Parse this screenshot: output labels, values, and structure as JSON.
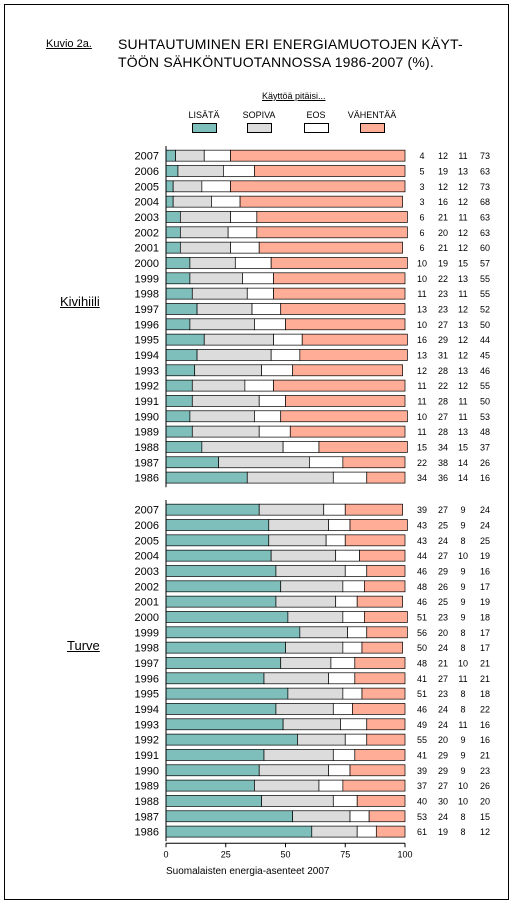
{
  "figure_label": "Kuvio 2a.",
  "title_line1": "SUHTAUTUMINEN ERI ENERGIAMUOTOJEN KÄYT-",
  "title_line2": "TÖÖN SÄHKÖNTUOTANNOSSA 1986-2007 (%).",
  "legend_title": "Käyttöä pitäisi...",
  "x_caption": "Suomalaisten energia-asenteet 2007",
  "colors": {
    "lisata": "#7ebfbc",
    "sopiva": "#dcdcdc",
    "eos": "#ffffff",
    "vahentaa": "#ffad97"
  },
  "chart_data": {
    "type": "bar",
    "orientation": "horizontal",
    "stacked": true,
    "xlim": [
      0,
      100
    ],
    "x_ticks": [
      0,
      25,
      50,
      75,
      100
    ],
    "legend": [
      "LISÄTÄ",
      "SOPIVA",
      "EOS",
      "VÄHENTÄÄ"
    ],
    "legend_placement": "top",
    "groups": [
      {
        "name": "Kivihiili",
        "categories": [
          "2007",
          "2006",
          "2005",
          "2004",
          "2003",
          "2002",
          "2001",
          "2000",
          "1999",
          "1998",
          "1997",
          "1996",
          "1995",
          "1994",
          "1993",
          "1992",
          "1991",
          "1990",
          "1989",
          "1988",
          "1987",
          "1986"
        ],
        "series": [
          {
            "name": "LISÄTÄ",
            "values": [
              4,
              5,
              3,
              3,
              6,
              6,
              6,
              10,
              10,
              11,
              13,
              10,
              16,
              13,
              12,
              11,
              11,
              10,
              11,
              15,
              22,
              34
            ]
          },
          {
            "name": "SOPIVA",
            "values": [
              12,
              19,
              12,
              16,
              21,
              20,
              21,
              19,
              22,
              23,
              23,
              27,
              29,
              31,
              28,
              22,
              28,
              27,
              28,
              34,
              38,
              36
            ]
          },
          {
            "name": "EOS",
            "values": [
              11,
              13,
              12,
              12,
              11,
              12,
              12,
              15,
              13,
              11,
              12,
              13,
              12,
              12,
              13,
              12,
              11,
              11,
              13,
              15,
              14,
              14
            ]
          },
          {
            "name": "VÄHENTÄÄ",
            "values": [
              73,
              63,
              73,
              68,
              63,
              63,
              60,
              57,
              55,
              55,
              52,
              50,
              44,
              45,
              46,
              55,
              50,
              53,
              48,
              37,
              26,
              16
            ]
          }
        ]
      },
      {
        "name": "Turve",
        "categories": [
          "2007",
          "2006",
          "2005",
          "2004",
          "2003",
          "2002",
          "2001",
          "2000",
          "1999",
          "1998",
          "1997",
          "1996",
          "1995",
          "1994",
          "1993",
          "1992",
          "1991",
          "1990",
          "1989",
          "1988",
          "1987",
          "1986"
        ],
        "series": [
          {
            "name": "LISÄTÄ",
            "values": [
              39,
              43,
              43,
              44,
              46,
              48,
              46,
              51,
              56,
              50,
              48,
              41,
              51,
              46,
              49,
              55,
              41,
              39,
              37,
              40,
              53,
              61
            ]
          },
          {
            "name": "SOPIVA",
            "values": [
              27,
              25,
              24,
              27,
              29,
              26,
              25,
              23,
              20,
              24,
              21,
              27,
              23,
              24,
              24,
              20,
              29,
              29,
              27,
              30,
              24,
              19
            ]
          },
          {
            "name": "EOS",
            "values": [
              9,
              9,
              8,
              10,
              9,
              9,
              9,
              9,
              8,
              8,
              10,
              11,
              8,
              8,
              11,
              9,
              9,
              9,
              10,
              10,
              8,
              8
            ]
          },
          {
            "name": "VÄHENTÄÄ",
            "values": [
              24,
              24,
              25,
              19,
              16,
              17,
              19,
              18,
              17,
              17,
              21,
              21,
              18,
              22,
              16,
              16,
              21,
              23,
              26,
              20,
              15,
              12
            ]
          }
        ]
      }
    ]
  }
}
